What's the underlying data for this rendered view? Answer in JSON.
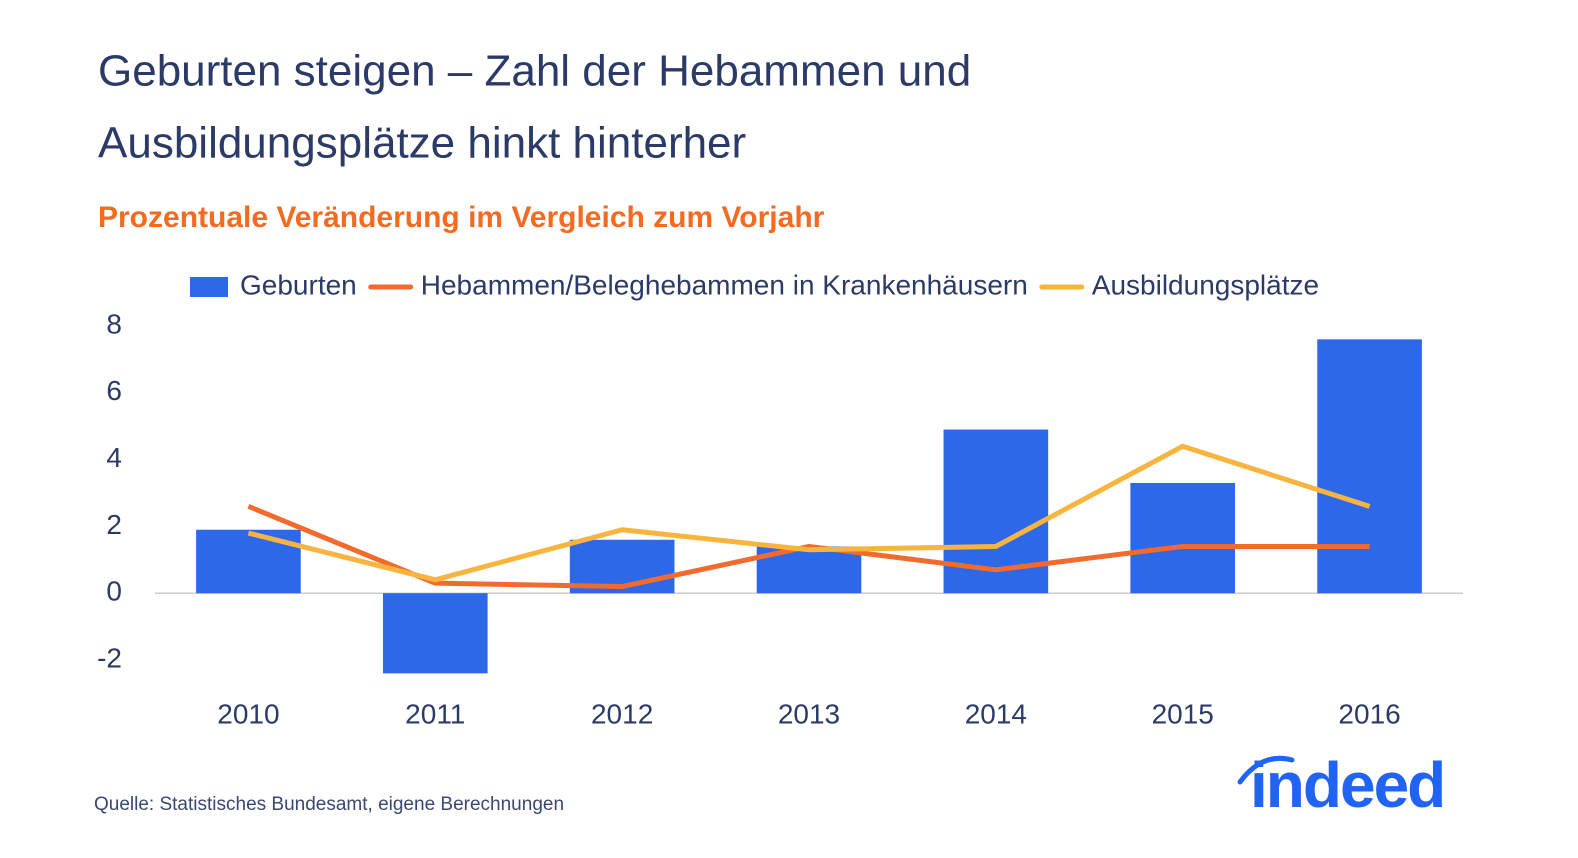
{
  "chart_data": {
    "type": "combo",
    "title_lines": [
      "Geburten steigen – Zahl der Hebammen und",
      "Ausbildungsplätze hinkt hinterher"
    ],
    "subtitle": "Prozentuale Veränderung im Vergleich zum Vorjahr",
    "categories": [
      "2010",
      "2011",
      "2012",
      "2013",
      "2014",
      "2015",
      "2016"
    ],
    "series": [
      {
        "name": "Geburten",
        "type": "bar",
        "color": "#2d68e8",
        "values": [
          1.9,
          -2.4,
          1.6,
          1.4,
          4.9,
          3.3,
          7.6
        ]
      },
      {
        "name": "Hebammen/Beleghebammen in Krankenhäusern",
        "type": "line",
        "color": "#f26b2e",
        "values": [
          2.6,
          0.3,
          0.2,
          1.4,
          0.7,
          1.4,
          1.4
        ]
      },
      {
        "name": "Ausbildungsplätze",
        "type": "line",
        "color": "#f7b540",
        "values": [
          1.8,
          0.4,
          1.9,
          1.3,
          1.4,
          4.4,
          2.6
        ]
      }
    ],
    "ylim": [
      -2.5,
      8
    ],
    "yticks": [
      -2,
      0,
      2,
      4,
      6,
      8
    ],
    "grid": false,
    "source": "Quelle: Statistisches Bundesamt, eigene Berechnungen",
    "logo": "indeed"
  }
}
